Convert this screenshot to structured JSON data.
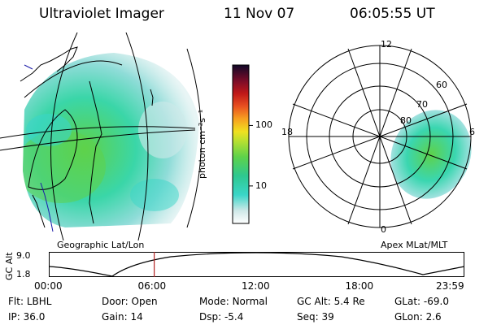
{
  "header": {
    "instrument": "Ultraviolet Imager",
    "date": "11 Nov 07",
    "time": "06:05:55 UT"
  },
  "colors": {
    "aurora_cyan": "#3ad6c8",
    "aurora_green": "#5ed24a",
    "aurora_pale": "#b8e6e6",
    "coastline_blue": "#1a1aa8",
    "time_marker": "#b22222"
  },
  "colorbar": {
    "label": "photon cm⁻²s⁻¹",
    "ticks": [
      "100",
      "10"
    ],
    "tick_values": [
      100,
      10
    ],
    "range": [
      2.4,
      1000
    ]
  },
  "geographic": {
    "label": "Geographic Lat/Lon"
  },
  "polar": {
    "label": "Apex MLat/MLT",
    "mlt_labels": [
      "12",
      "6",
      "18",
      "0"
    ],
    "mlat_labels": [
      "60",
      "70",
      "80"
    ]
  },
  "altitude_plot": {
    "ylabel": "GC Alt",
    "yticks": [
      "9.0",
      "1.8"
    ],
    "xticks": [
      "00:00",
      "06:00",
      "12:00",
      "18:00",
      "23:59"
    ],
    "current_hour": 6.1
  },
  "status": {
    "row1": [
      {
        "key": "Flt:",
        "value": "LBHL"
      },
      {
        "key": "Door:",
        "value": "Open"
      },
      {
        "key": "Mode:",
        "value": "Normal"
      },
      {
        "key": "GC Alt:",
        "value": "5.4 Re"
      },
      {
        "key": "GLat:",
        "value": "-69.0"
      }
    ],
    "row2": [
      {
        "key": "IP:",
        "value": "36.0"
      },
      {
        "key": "Gain:",
        "value": "14"
      },
      {
        "key": "Dsp:",
        "value": "-5.4"
      },
      {
        "key": "Seq:",
        "value": "39"
      },
      {
        "key": "GLon:",
        "value": "2.6"
      }
    ]
  }
}
